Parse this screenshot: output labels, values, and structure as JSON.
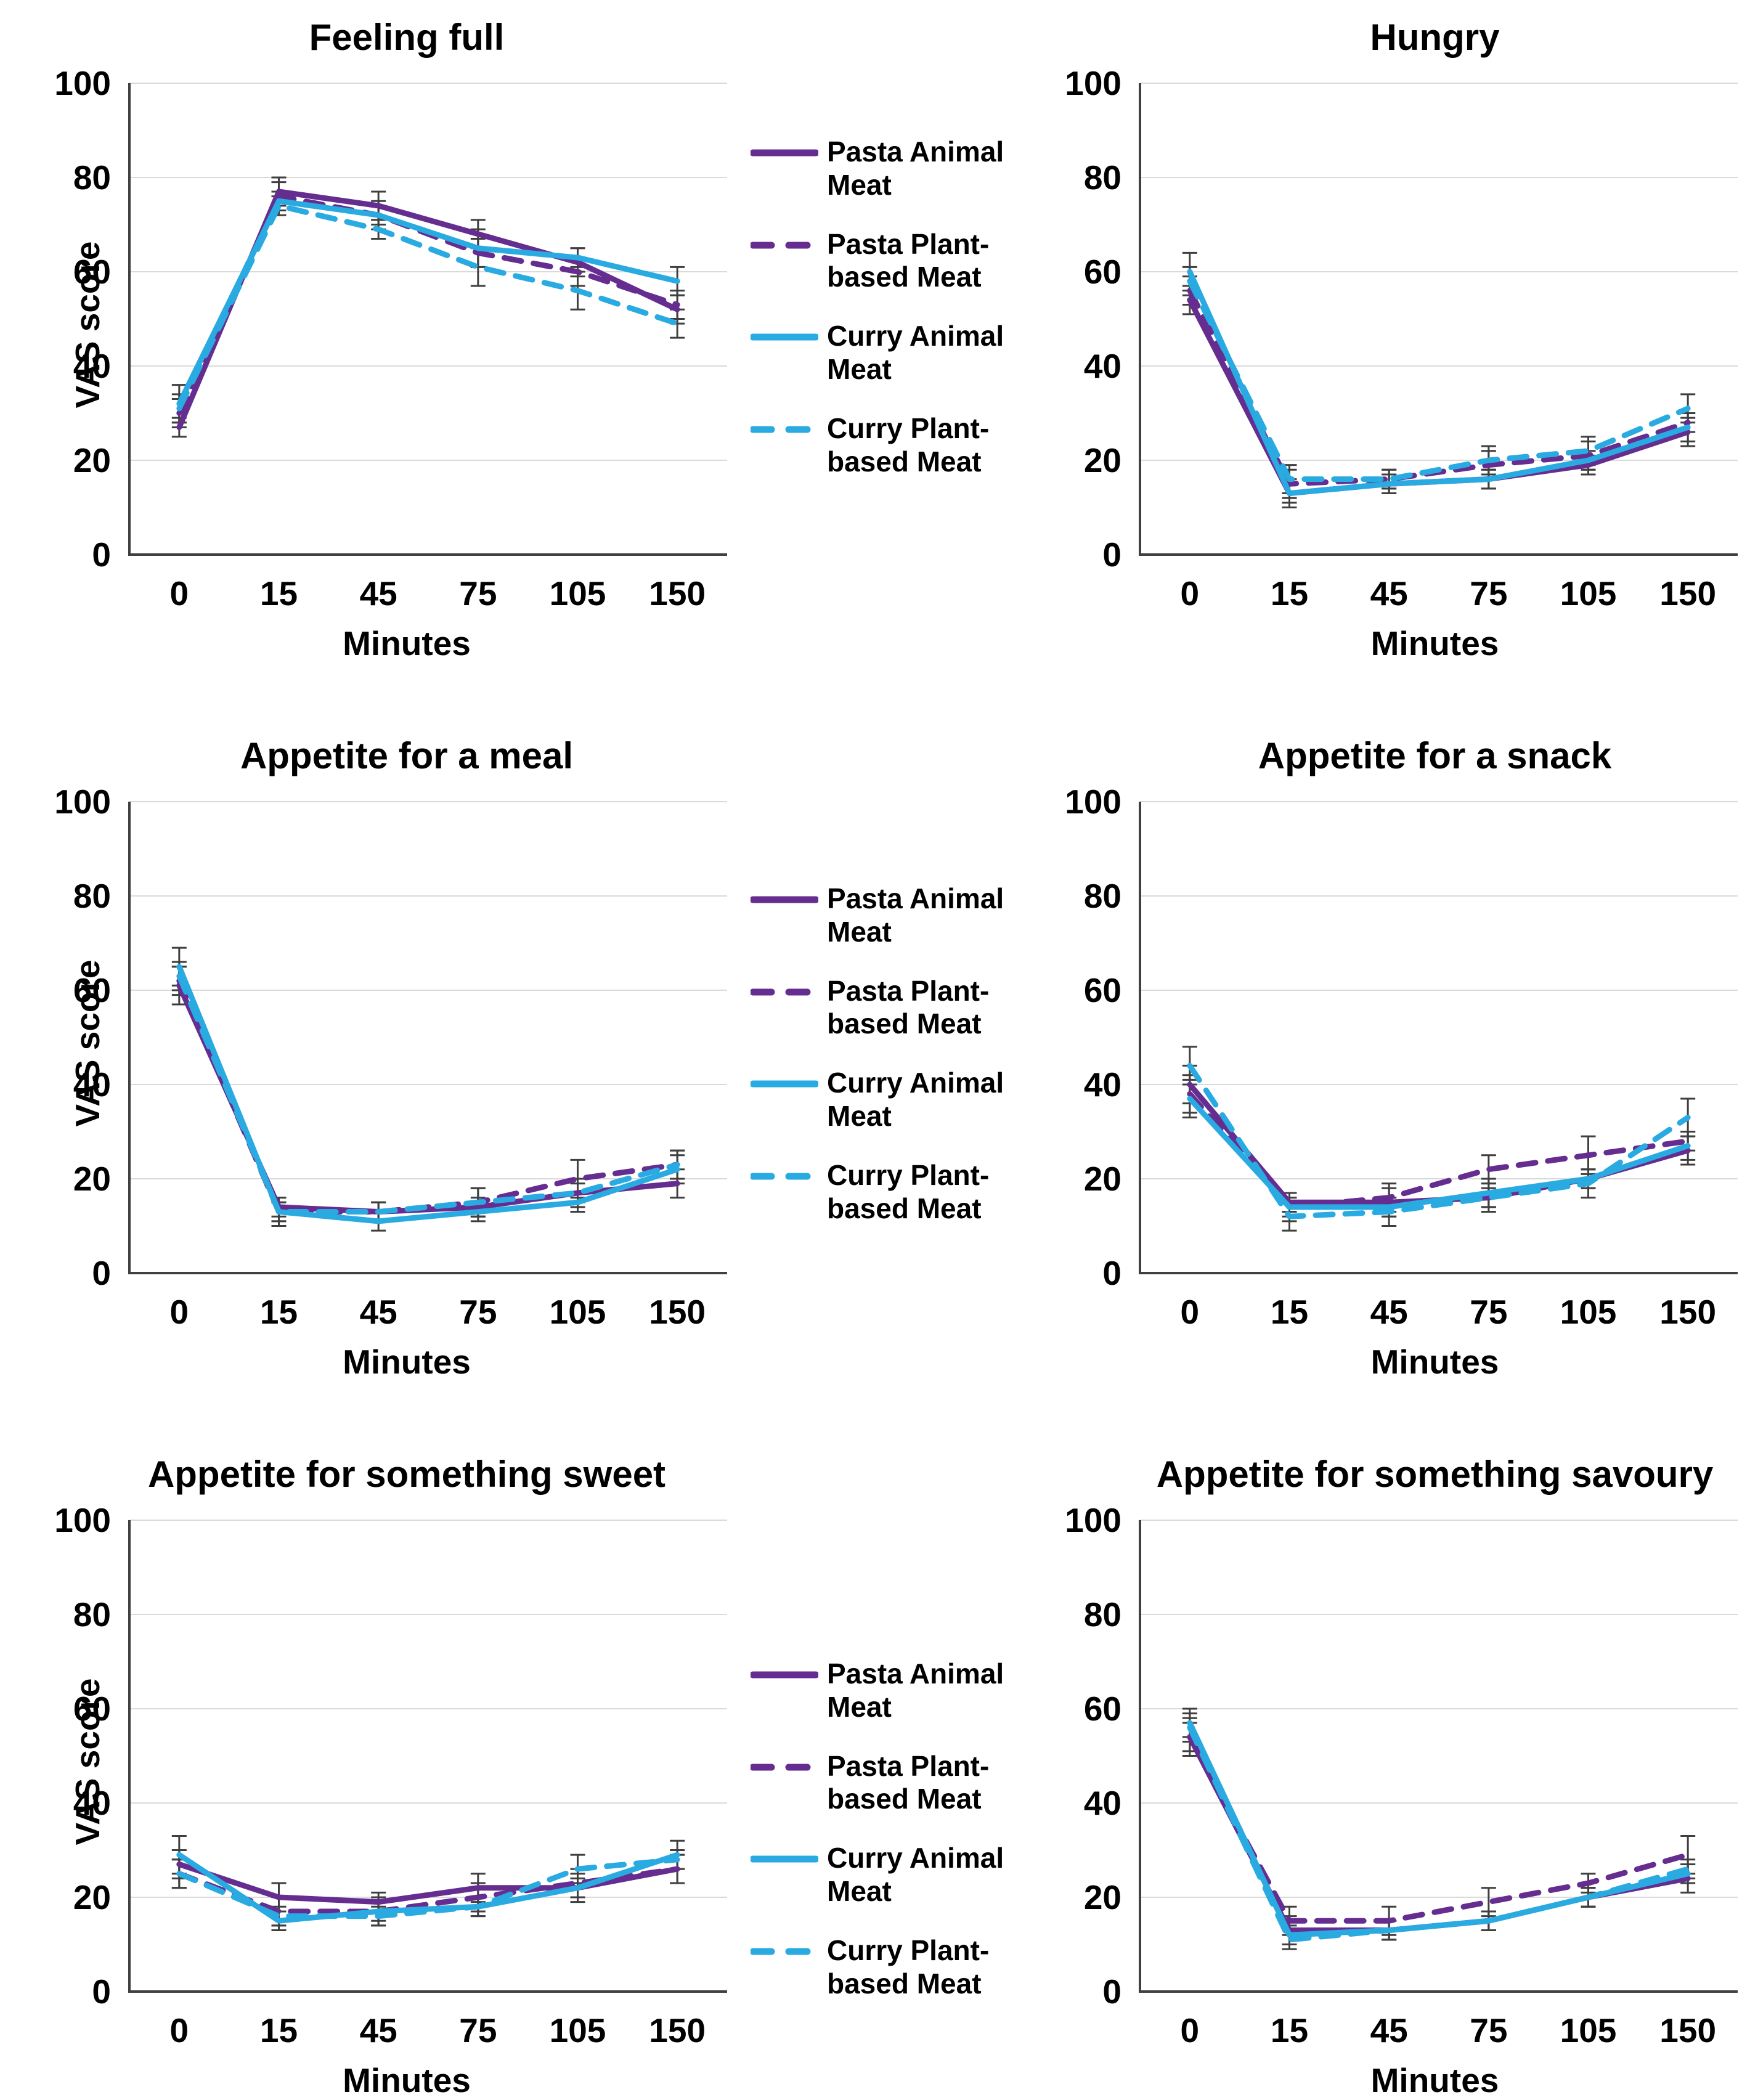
{
  "figure": {
    "colors": {
      "purple": "#662D91",
      "cyan": "#29ABE2",
      "error_bar": "#3F3F3F",
      "gridline": "#DADADA",
      "axis": "#404040",
      "text": "#000000"
    },
    "legend": {
      "entries": [
        {
          "label": "Pasta Animal Meat",
          "color": "#662D91",
          "line_style": "solid"
        },
        {
          "label": "Pasta Plant-based Meat",
          "color": "#662D91",
          "line_style": "dashed"
        },
        {
          "label": "Curry Animal Meat",
          "color": "#29ABE2",
          "line_style": "solid"
        },
        {
          "label": "Curry Plant-based Meat",
          "color": "#29ABE2",
          "line_style": "dashed"
        }
      ]
    }
  },
  "chart_data": [
    {
      "type": "line",
      "title": "Feeling full",
      "xlabel": "Minutes",
      "ylabel": "VAS score",
      "x_categories": [
        "0",
        "15",
        "45",
        "75",
        "105",
        "150"
      ],
      "yticks": [
        0,
        20,
        40,
        60,
        80,
        100
      ],
      "ylim": [
        0,
        100
      ],
      "grid": true,
      "error_bars": true,
      "legend_position": "right-of-chart",
      "series": [
        {
          "name": "Pasta Animal Meat",
          "color": "#662D91",
          "line_style": "solid",
          "values": [
            27,
            77,
            74,
            68,
            62,
            52
          ],
          "errors": [
            2,
            3,
            3,
            3,
            3,
            3
          ]
        },
        {
          "name": "Pasta Plant-based Meat",
          "color": "#662D91",
          "line_style": "dashed",
          "values": [
            30,
            76,
            72,
            64,
            60,
            53
          ],
          "errors": [
            3,
            3,
            2,
            3,
            3,
            3
          ]
        },
        {
          "name": "Curry Animal Meat",
          "color": "#29ABE2",
          "line_style": "solid",
          "values": [
            32,
            75,
            72,
            65,
            63,
            58
          ],
          "errors": [
            4,
            2,
            3,
            4,
            2,
            3
          ]
        },
        {
          "name": "Curry Plant-based Meat",
          "color": "#29ABE2",
          "line_style": "dashed",
          "values": [
            31,
            74,
            69,
            61,
            56,
            49
          ],
          "errors": [
            3,
            2,
            2,
            4,
            4,
            3
          ]
        }
      ]
    },
    {
      "type": "line",
      "title": "Hungry",
      "xlabel": "Minutes",
      "ylabel": "",
      "x_categories": [
        "0",
        "15",
        "45",
        "75",
        "105",
        "150"
      ],
      "yticks": [
        0,
        20,
        40,
        60,
        80,
        100
      ],
      "ylim": [
        0,
        100
      ],
      "grid": true,
      "error_bars": true,
      "legend_position": "left-of-chart",
      "series": [
        {
          "name": "Pasta Animal Meat",
          "color": "#662D91",
          "line_style": "solid",
          "values": [
            54,
            13,
            15,
            16,
            19,
            26
          ],
          "errors": [
            3,
            2,
            2,
            2,
            2,
            3
          ]
        },
        {
          "name": "Pasta Plant-based Meat",
          "color": "#662D91",
          "line_style": "dashed",
          "values": [
            56,
            15,
            16,
            19,
            21,
            28
          ],
          "errors": [
            3,
            3,
            2,
            3,
            3,
            2
          ]
        },
        {
          "name": "Curry Animal Meat",
          "color": "#29ABE2",
          "line_style": "solid",
          "values": [
            60,
            13,
            15,
            16,
            20,
            27
          ],
          "errors": [
            4,
            3,
            2,
            2,
            2,
            3
          ]
        },
        {
          "name": "Curry Plant-based Meat",
          "color": "#29ABE2",
          "line_style": "dashed",
          "values": [
            58,
            16,
            16,
            20,
            22,
            31
          ],
          "errors": [
            3,
            3,
            2,
            3,
            3,
            3
          ]
        }
      ]
    },
    {
      "type": "line",
      "title": "Appetite for a meal",
      "xlabel": "Minutes",
      "ylabel": "VAS score",
      "x_categories": [
        "0",
        "15",
        "45",
        "75",
        "105",
        "150"
      ],
      "yticks": [
        0,
        20,
        40,
        60,
        80,
        100
      ],
      "ylim": [
        0,
        100
      ],
      "grid": true,
      "error_bars": true,
      "legend_position": "right-of-chart",
      "series": [
        {
          "name": "Pasta Animal Meat",
          "color": "#662D91",
          "line_style": "solid",
          "values": [
            61,
            14,
            13,
            14,
            17,
            19
          ],
          "errors": [
            4,
            2,
            2,
            2,
            2,
            3
          ]
        },
        {
          "name": "Pasta Plant-based Meat",
          "color": "#662D91",
          "line_style": "dashed",
          "values": [
            62,
            13,
            13,
            15,
            20,
            23
          ],
          "errors": [
            3,
            2,
            2,
            3,
            4,
            3
          ]
        },
        {
          "name": "Curry Animal Meat",
          "color": "#29ABE2",
          "line_style": "solid",
          "values": [
            65,
            13,
            11,
            13,
            15,
            22
          ],
          "errors": [
            4,
            3,
            2,
            2,
            2,
            3
          ]
        },
        {
          "name": "Curry Plant-based Meat",
          "color": "#29ABE2",
          "line_style": "dashed",
          "values": [
            63,
            13,
            13,
            15,
            17,
            23
          ],
          "errors": [
            3,
            2,
            2,
            3,
            3,
            3
          ]
        }
      ]
    },
    {
      "type": "line",
      "title": "Appetite for a snack",
      "xlabel": "Minutes",
      "ylabel": "",
      "x_categories": [
        "0",
        "15",
        "45",
        "75",
        "105",
        "150"
      ],
      "yticks": [
        0,
        20,
        40,
        60,
        80,
        100
      ],
      "ylim": [
        0,
        100
      ],
      "grid": true,
      "error_bars": true,
      "legend_position": "left-of-chart",
      "series": [
        {
          "name": "Pasta Animal Meat",
          "color": "#662D91",
          "line_style": "solid",
          "values": [
            40,
            15,
            15,
            16,
            20,
            26
          ],
          "errors": [
            4,
            2,
            3,
            2,
            2,
            3
          ]
        },
        {
          "name": "Pasta Plant-based Meat",
          "color": "#662D91",
          "line_style": "dashed",
          "values": [
            38,
            14,
            16,
            22,
            25,
            28
          ],
          "errors": [
            4,
            3,
            3,
            3,
            4,
            2
          ]
        },
        {
          "name": "Curry Animal Meat",
          "color": "#29ABE2",
          "line_style": "solid",
          "values": [
            37,
            14,
            14,
            17,
            20,
            27
          ],
          "errors": [
            4,
            2,
            2,
            3,
            2,
            3
          ]
        },
        {
          "name": "Curry Plant-based Meat",
          "color": "#29ABE2",
          "line_style": "dashed",
          "values": [
            44,
            12,
            13,
            16,
            19,
            33
          ],
          "errors": [
            4,
            3,
            3,
            3,
            3,
            4
          ]
        }
      ]
    },
    {
      "type": "line",
      "title": "Appetite for something sweet",
      "xlabel": "Minutes",
      "ylabel": "VAS score",
      "x_categories": [
        "0",
        "15",
        "45",
        "75",
        "105",
        "150"
      ],
      "yticks": [
        0,
        20,
        40,
        60,
        80,
        100
      ],
      "ylim": [
        0,
        100
      ],
      "grid": true,
      "error_bars": true,
      "legend_position": "right-of-chart",
      "series": [
        {
          "name": "Pasta Animal Meat",
          "color": "#662D91",
          "line_style": "solid",
          "values": [
            27,
            20,
            19,
            22,
            22,
            26
          ],
          "errors": [
            3,
            3,
            2,
            3,
            2,
            3
          ]
        },
        {
          "name": "Pasta Plant-based Meat",
          "color": "#662D91",
          "line_style": "dashed",
          "values": [
            25,
            17,
            17,
            20,
            23,
            26
          ],
          "errors": [
            3,
            3,
            2,
            3,
            3,
            3
          ]
        },
        {
          "name": "Curry Animal Meat",
          "color": "#29ABE2",
          "line_style": "solid",
          "values": [
            29,
            15,
            17,
            18,
            22,
            29
          ],
          "errors": [
            4,
            2,
            3,
            2,
            3,
            3
          ]
        },
        {
          "name": "Curry Plant-based Meat",
          "color": "#29ABE2",
          "line_style": "dashed",
          "values": [
            25,
            16,
            16,
            18,
            26,
            28
          ],
          "errors": [
            3,
            2,
            2,
            2,
            3,
            2
          ]
        }
      ]
    },
    {
      "type": "line",
      "title": "Appetite for something savoury",
      "xlabel": "Minutes",
      "ylabel": "",
      "x_categories": [
        "0",
        "15",
        "45",
        "75",
        "105",
        "150"
      ],
      "yticks": [
        0,
        20,
        40,
        60,
        80,
        100
      ],
      "ylim": [
        0,
        100
      ],
      "grid": true,
      "error_bars": true,
      "legend_position": "left-of-chart",
      "series": [
        {
          "name": "Pasta Animal Meat",
          "color": "#662D91",
          "line_style": "solid",
          "values": [
            54,
            13,
            13,
            15,
            20,
            24
          ],
          "errors": [
            4,
            3,
            2,
            2,
            2,
            3
          ]
        },
        {
          "name": "Pasta Plant-based Meat",
          "color": "#662D91",
          "line_style": "dashed",
          "values": [
            54,
            15,
            15,
            19,
            23,
            29
          ],
          "errors": [
            3,
            3,
            3,
            3,
            2,
            4
          ]
        },
        {
          "name": "Curry Animal Meat",
          "color": "#29ABE2",
          "line_style": "solid",
          "values": [
            57,
            12,
            13,
            15,
            20,
            25
          ],
          "errors": [
            3,
            2,
            2,
            2,
            2,
            2
          ]
        },
        {
          "name": "Curry Plant-based Meat",
          "color": "#29ABE2",
          "line_style": "dashed",
          "values": [
            56,
            11,
            13,
            15,
            20,
            26
          ],
          "errors": [
            3,
            2,
            2,
            2,
            2,
            2
          ]
        }
      ]
    }
  ]
}
